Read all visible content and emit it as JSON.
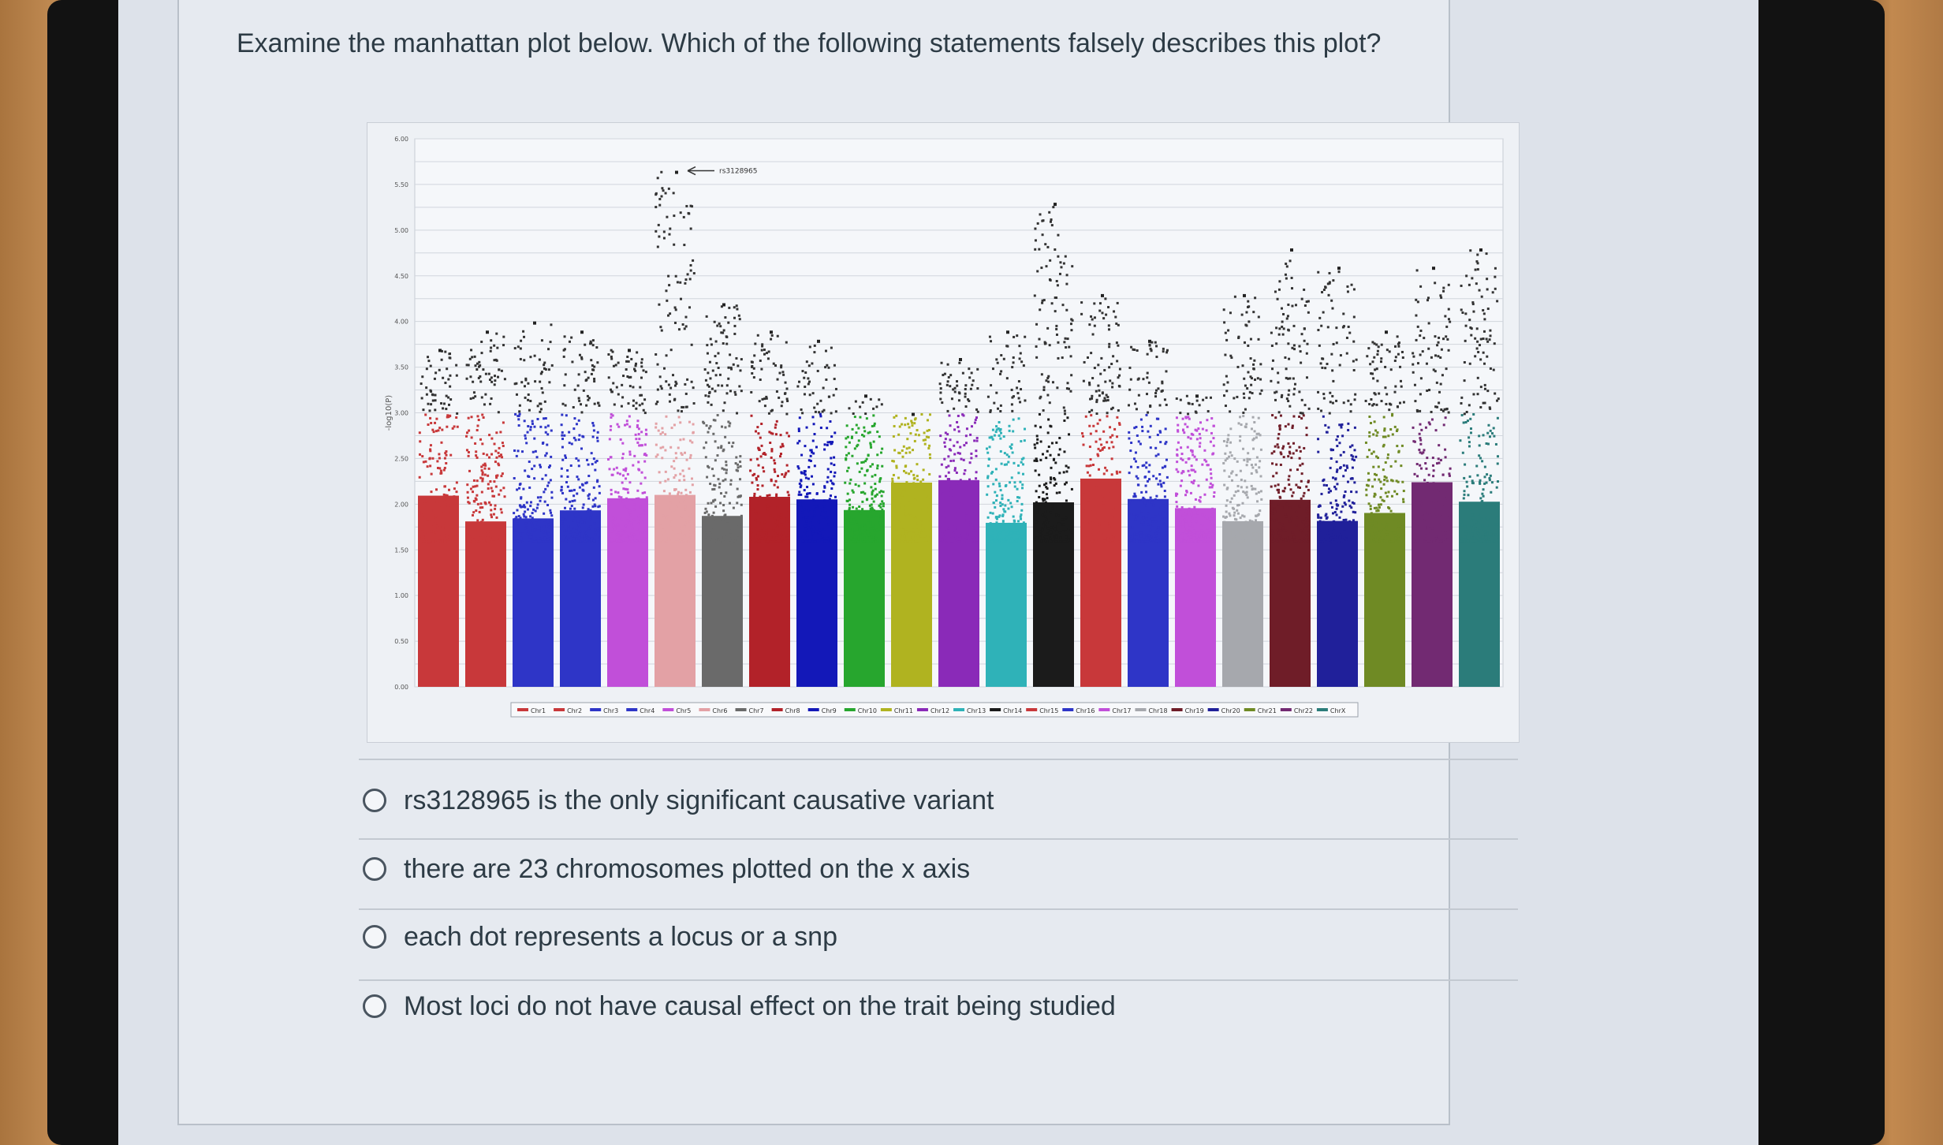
{
  "question": {
    "text": "Examine the manhattan plot below. Which of the following statements falsely describes this plot?"
  },
  "options": [
    {
      "label": "rs3128965 is the only significant causative variant"
    },
    {
      "label": "there are 23 chromosomes plotted on the x axis"
    },
    {
      "label": "each dot represents a locus or a snp"
    },
    {
      "label": "Most loci do not have causal effect on the trait being studied"
    }
  ],
  "chart_data": {
    "type": "scatter",
    "subtype": "manhattan",
    "title": "",
    "xlabel": "",
    "ylabel": "-log10(P)",
    "ylim": [
      0,
      6
    ],
    "grid": true,
    "legend_position": "bottom",
    "annotations": [
      {
        "text": "rs3128965",
        "chromosome": "Chr6",
        "y": 5.65
      }
    ],
    "series": [
      {
        "name": "Chr1",
        "color": "#c8383a",
        "peak": 3.7
      },
      {
        "name": "Chr2",
        "color": "#c8383a",
        "peak": 3.9
      },
      {
        "name": "Chr3",
        "color": "#2e35c7",
        "peak": 4.0
      },
      {
        "name": "Chr4",
        "color": "#2e35c7",
        "peak": 3.9
      },
      {
        "name": "Chr5",
        "color": "#c14fd9",
        "peak": 3.7
      },
      {
        "name": "Chr6",
        "color": "#e3a1a5",
        "peak": 5.65
      },
      {
        "name": "Chr7",
        "color": "#6a6a6a",
        "peak": 4.2
      },
      {
        "name": "Chr8",
        "color": "#b22229",
        "peak": 3.9
      },
      {
        "name": "Chr9",
        "color": "#1318b8",
        "peak": 3.8
      },
      {
        "name": "Chr10",
        "color": "#27a62e",
        "peak": 3.2
      },
      {
        "name": "Chr11",
        "color": "#b0b320",
        "peak": 3.0
      },
      {
        "name": "Chr12",
        "color": "#8a2ab8",
        "peak": 3.6
      },
      {
        "name": "Chr13",
        "color": "#2fb2b8",
        "peak": 3.9
      },
      {
        "name": "Chr14",
        "color": "#1b1b1b",
        "peak": 5.3
      },
      {
        "name": "Chr15",
        "color": "#c8383a",
        "peak": 4.3
      },
      {
        "name": "Chr16",
        "color": "#2e35c7",
        "peak": 3.8
      },
      {
        "name": "Chr17",
        "color": "#c14fd9",
        "peak": 3.2
      },
      {
        "name": "Chr18",
        "color": "#a6a8ad",
        "peak": 4.3
      },
      {
        "name": "Chr19",
        "color": "#6f1d28",
        "peak": 4.8
      },
      {
        "name": "Chr20",
        "color": "#20209a",
        "peak": 4.6
      },
      {
        "name": "Chr21",
        "color": "#6f8a24",
        "peak": 3.9
      },
      {
        "name": "Chr22",
        "color": "#722a72",
        "peak": 4.6
      },
      {
        "name": "ChrX",
        "color": "#2b7c7a",
        "peak": 4.8
      }
    ]
  }
}
